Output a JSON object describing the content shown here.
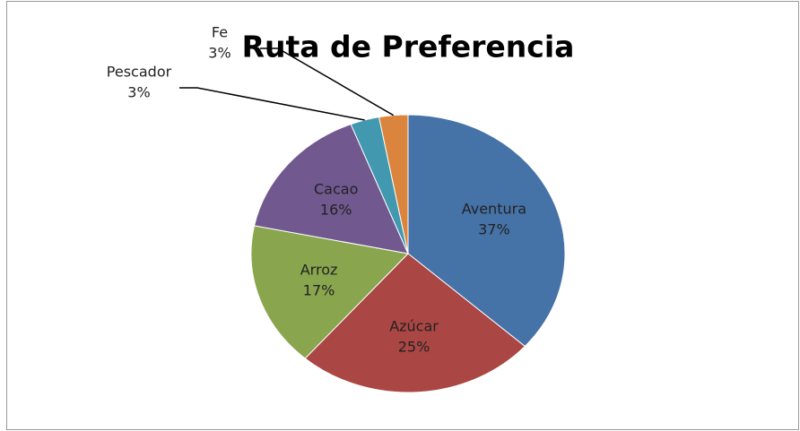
{
  "chart_data": {
    "type": "pie",
    "title": "Ruta de Preferencia",
    "categories": [
      "Aventura",
      "Azúcar",
      "Arroz",
      "Cacao",
      "Pescador",
      "Fe"
    ],
    "values": [
      37,
      25,
      17,
      16,
      3,
      3
    ],
    "value_labels": [
      "37%",
      "25%",
      "17%",
      "16%",
      "3%",
      "3%"
    ],
    "colors": [
      "#4572a7",
      "#aa4643",
      "#89a54e",
      "#71588f",
      "#4198af",
      "#db843d"
    ]
  }
}
